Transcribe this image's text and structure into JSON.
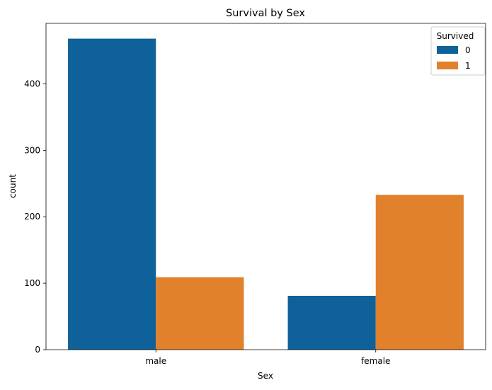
{
  "chart_data": {
    "type": "bar",
    "title": "Survival by Sex",
    "xlabel": "Sex",
    "ylabel": "count",
    "categories": [
      "male",
      "female"
    ],
    "series": [
      {
        "name": "0",
        "values": [
          468,
          81
        ],
        "color": "#0f6199"
      },
      {
        "name": "1",
        "values": [
          109,
          233
        ],
        "color": "#e1812c"
      }
    ],
    "ylim": [
      0,
      491
    ],
    "yticks": [
      0,
      100,
      200,
      300,
      400
    ],
    "legend": {
      "title": "Survived",
      "placement": "top-right"
    },
    "grid": false
  }
}
